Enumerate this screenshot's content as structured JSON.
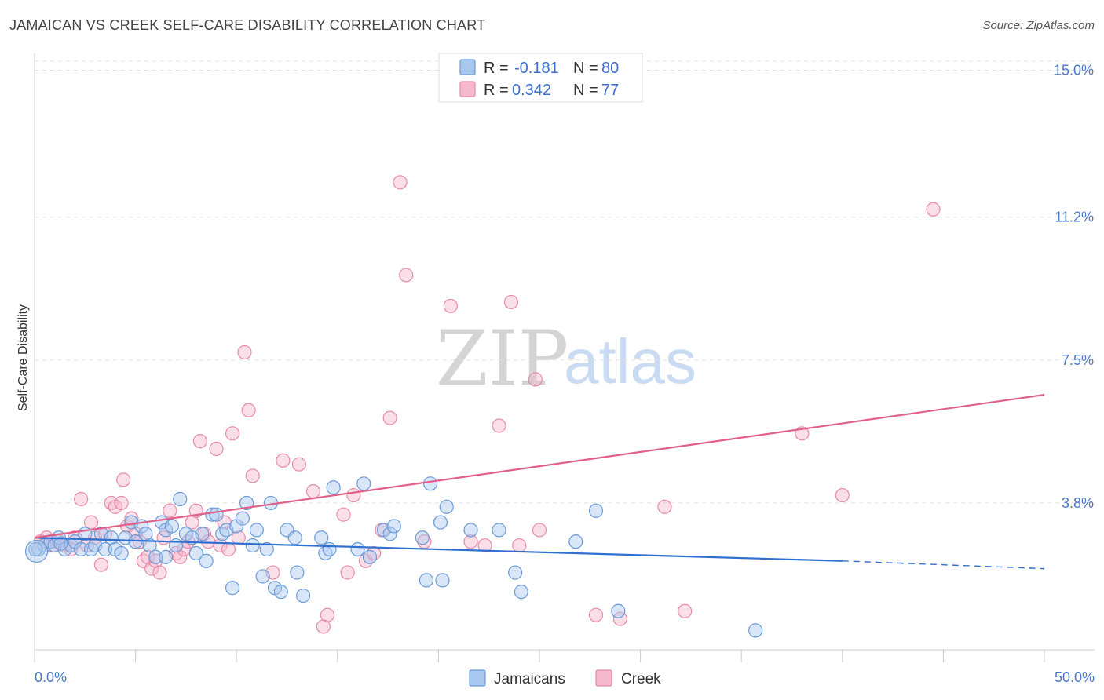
{
  "title": "JAMAICAN VS CREEK SELF-CARE DISABILITY CORRELATION CHART",
  "source": "Source: ZipAtlas.com",
  "watermark": {
    "zip": "ZIP",
    "atlas": "atlas"
  },
  "colors": {
    "jamaicans_fill": "#a8c8f0",
    "jamaicans_stroke": "#6a9ad8",
    "jamaicans_line": "#2f6fd0",
    "creek_fill": "#f6b8cc",
    "creek_stroke": "#e88aa8",
    "creek_line": "#e0608a",
    "tick_label": "#4a78c8",
    "grid": "#e0e0e0"
  },
  "legend": {
    "rows": [
      {
        "r_label": "R =",
        "r_value": "-0.181",
        "n_label": "N =",
        "n_value": "80"
      },
      {
        "r_label": "R =",
        "r_value": "0.342",
        "n_label": "N =",
        "n_value": "77"
      }
    ]
  },
  "chart_data": {
    "type": "scatter",
    "title": "JAMAICAN VS CREEK SELF-CARE DISABILITY CORRELATION CHART",
    "xlabel": "",
    "ylabel": "Self-Care Disability",
    "xlim": [
      0,
      50
    ],
    "ylim": [
      0,
      15.6
    ],
    "x_tick_labels": [
      "0.0%",
      "50.0%"
    ],
    "y_ticks": [
      3.8,
      7.5,
      11.2,
      15.0
    ],
    "y_tick_labels": [
      "3.8%",
      "7.5%",
      "11.2%",
      "15.0%"
    ],
    "grid": true,
    "legend_position": "top-center",
    "series": [
      {
        "name": "Jamaicans",
        "r": -0.181,
        "n": 80,
        "trend": {
          "x0": 0,
          "y0": 2.9,
          "x1": 40,
          "y1": 2.3,
          "dashed_to_x": 50,
          "dashed_to_y": 2.1
        },
        "points": [
          [
            0.2,
            2.6
          ],
          [
            0.5,
            2.7
          ],
          [
            0.8,
            2.8
          ],
          [
            1.0,
            2.7
          ],
          [
            1.2,
            2.9
          ],
          [
            1.5,
            2.6
          ],
          [
            1.8,
            2.7
          ],
          [
            2.0,
            2.8
          ],
          [
            2.3,
            2.6
          ],
          [
            2.5,
            3.0
          ],
          [
            2.8,
            2.6
          ],
          [
            3.0,
            2.7
          ],
          [
            3.3,
            3.0
          ],
          [
            3.5,
            2.6
          ],
          [
            3.8,
            2.9
          ],
          [
            4.0,
            2.6
          ],
          [
            4.3,
            2.5
          ],
          [
            4.5,
            2.9
          ],
          [
            4.8,
            3.3
          ],
          [
            5.0,
            2.8
          ],
          [
            5.3,
            3.2
          ],
          [
            5.5,
            3.0
          ],
          [
            5.7,
            2.7
          ],
          [
            6.0,
            2.4
          ],
          [
            6.3,
            3.3
          ],
          [
            6.5,
            3.1
          ],
          [
            6.8,
            3.2
          ],
          [
            7.0,
            2.7
          ],
          [
            7.2,
            3.9
          ],
          [
            7.5,
            3.0
          ],
          [
            7.8,
            2.9
          ],
          [
            8.0,
            2.5
          ],
          [
            8.3,
            3.0
          ],
          [
            8.5,
            2.3
          ],
          [
            8.8,
            3.5
          ],
          [
            9.0,
            3.5
          ],
          [
            9.3,
            3.0
          ],
          [
            9.5,
            3.1
          ],
          [
            9.8,
            1.6
          ],
          [
            10.0,
            3.2
          ],
          [
            10.3,
            3.4
          ],
          [
            10.5,
            3.8
          ],
          [
            10.8,
            2.7
          ],
          [
            11.0,
            3.1
          ],
          [
            11.3,
            1.9
          ],
          [
            11.5,
            2.6
          ],
          [
            11.7,
            3.8
          ],
          [
            11.9,
            1.6
          ],
          [
            12.2,
            1.5
          ],
          [
            12.5,
            3.1
          ],
          [
            12.9,
            2.9
          ],
          [
            13.0,
            2.0
          ],
          [
            13.3,
            1.4
          ],
          [
            14.2,
            2.9
          ],
          [
            14.4,
            2.5
          ],
          [
            14.6,
            2.6
          ],
          [
            14.8,
            4.2
          ],
          [
            16.0,
            2.6
          ],
          [
            16.3,
            4.3
          ],
          [
            16.6,
            2.4
          ],
          [
            17.3,
            3.1
          ],
          [
            17.6,
            3.0
          ],
          [
            17.8,
            3.2
          ],
          [
            19.2,
            2.9
          ],
          [
            19.4,
            1.8
          ],
          [
            19.6,
            4.3
          ],
          [
            20.1,
            3.3
          ],
          [
            20.2,
            1.8
          ],
          [
            20.4,
            3.7
          ],
          [
            21.6,
            3.1
          ],
          [
            23.0,
            3.1
          ],
          [
            23.8,
            2.0
          ],
          [
            24.1,
            1.5
          ],
          [
            26.8,
            2.8
          ],
          [
            27.8,
            3.6
          ],
          [
            28.9,
            1.0
          ],
          [
            35.7,
            0.5
          ],
          [
            0.05,
            2.6
          ],
          [
            1.3,
            2.75
          ],
          [
            6.5,
            2.4
          ]
        ]
      },
      {
        "name": "Creek",
        "r": 0.342,
        "n": 77,
        "trend": {
          "x0": 0,
          "y0": 2.9,
          "x1": 50,
          "y1": 6.6
        },
        "points": [
          [
            0.3,
            2.8
          ],
          [
            0.6,
            2.9
          ],
          [
            0.9,
            2.7
          ],
          [
            1.2,
            2.8
          ],
          [
            1.5,
            2.7
          ],
          [
            1.8,
            2.6
          ],
          [
            2.0,
            2.9
          ],
          [
            2.3,
            3.9
          ],
          [
            2.6,
            2.7
          ],
          [
            2.8,
            3.3
          ],
          [
            3.0,
            2.9
          ],
          [
            3.3,
            2.2
          ],
          [
            3.5,
            3.0
          ],
          [
            3.8,
            3.8
          ],
          [
            4.0,
            3.7
          ],
          [
            4.3,
            3.8
          ],
          [
            4.4,
            4.4
          ],
          [
            4.6,
            3.2
          ],
          [
            4.8,
            3.4
          ],
          [
            5.0,
            3.0
          ],
          [
            5.2,
            2.8
          ],
          [
            5.4,
            2.3
          ],
          [
            5.6,
            2.4
          ],
          [
            5.8,
            2.1
          ],
          [
            6.0,
            2.3
          ],
          [
            6.2,
            2.0
          ],
          [
            6.4,
            2.9
          ],
          [
            6.7,
            3.6
          ],
          [
            7.0,
            2.5
          ],
          [
            7.2,
            2.4
          ],
          [
            7.4,
            2.6
          ],
          [
            7.6,
            2.8
          ],
          [
            7.8,
            3.3
          ],
          [
            8.0,
            3.6
          ],
          [
            8.2,
            5.4
          ],
          [
            8.4,
            3.0
          ],
          [
            8.6,
            2.8
          ],
          [
            9.0,
            5.2
          ],
          [
            9.2,
            2.7
          ],
          [
            9.4,
            3.3
          ],
          [
            9.6,
            2.6
          ],
          [
            9.8,
            5.6
          ],
          [
            10.1,
            2.9
          ],
          [
            10.4,
            7.7
          ],
          [
            10.6,
            6.2
          ],
          [
            10.8,
            4.5
          ],
          [
            11.8,
            2.0
          ],
          [
            12.3,
            4.9
          ],
          [
            13.1,
            4.8
          ],
          [
            13.8,
            4.1
          ],
          [
            14.5,
            0.9
          ],
          [
            14.3,
            0.6
          ],
          [
            15.3,
            3.5
          ],
          [
            15.5,
            2.0
          ],
          [
            15.8,
            4.0
          ],
          [
            16.4,
            2.3
          ],
          [
            16.8,
            2.5
          ],
          [
            17.2,
            3.1
          ],
          [
            17.6,
            6.0
          ],
          [
            18.1,
            12.1
          ],
          [
            18.4,
            9.7
          ],
          [
            19.3,
            2.8
          ],
          [
            20.6,
            8.9
          ],
          [
            21.6,
            2.8
          ],
          [
            22.3,
            2.7
          ],
          [
            23.0,
            5.8
          ],
          [
            23.6,
            9.0
          ],
          [
            24.0,
            2.7
          ],
          [
            24.8,
            7.0
          ],
          [
            25.0,
            3.1
          ],
          [
            27.8,
            0.9
          ],
          [
            29.0,
            0.8
          ],
          [
            31.2,
            3.7
          ],
          [
            32.2,
            1.0
          ],
          [
            38.0,
            5.6
          ],
          [
            40.0,
            4.0
          ],
          [
            44.5,
            11.4
          ]
        ]
      }
    ]
  },
  "bottom_legend": {
    "items": [
      {
        "label": "Jamaicans"
      },
      {
        "label": "Creek"
      }
    ]
  }
}
